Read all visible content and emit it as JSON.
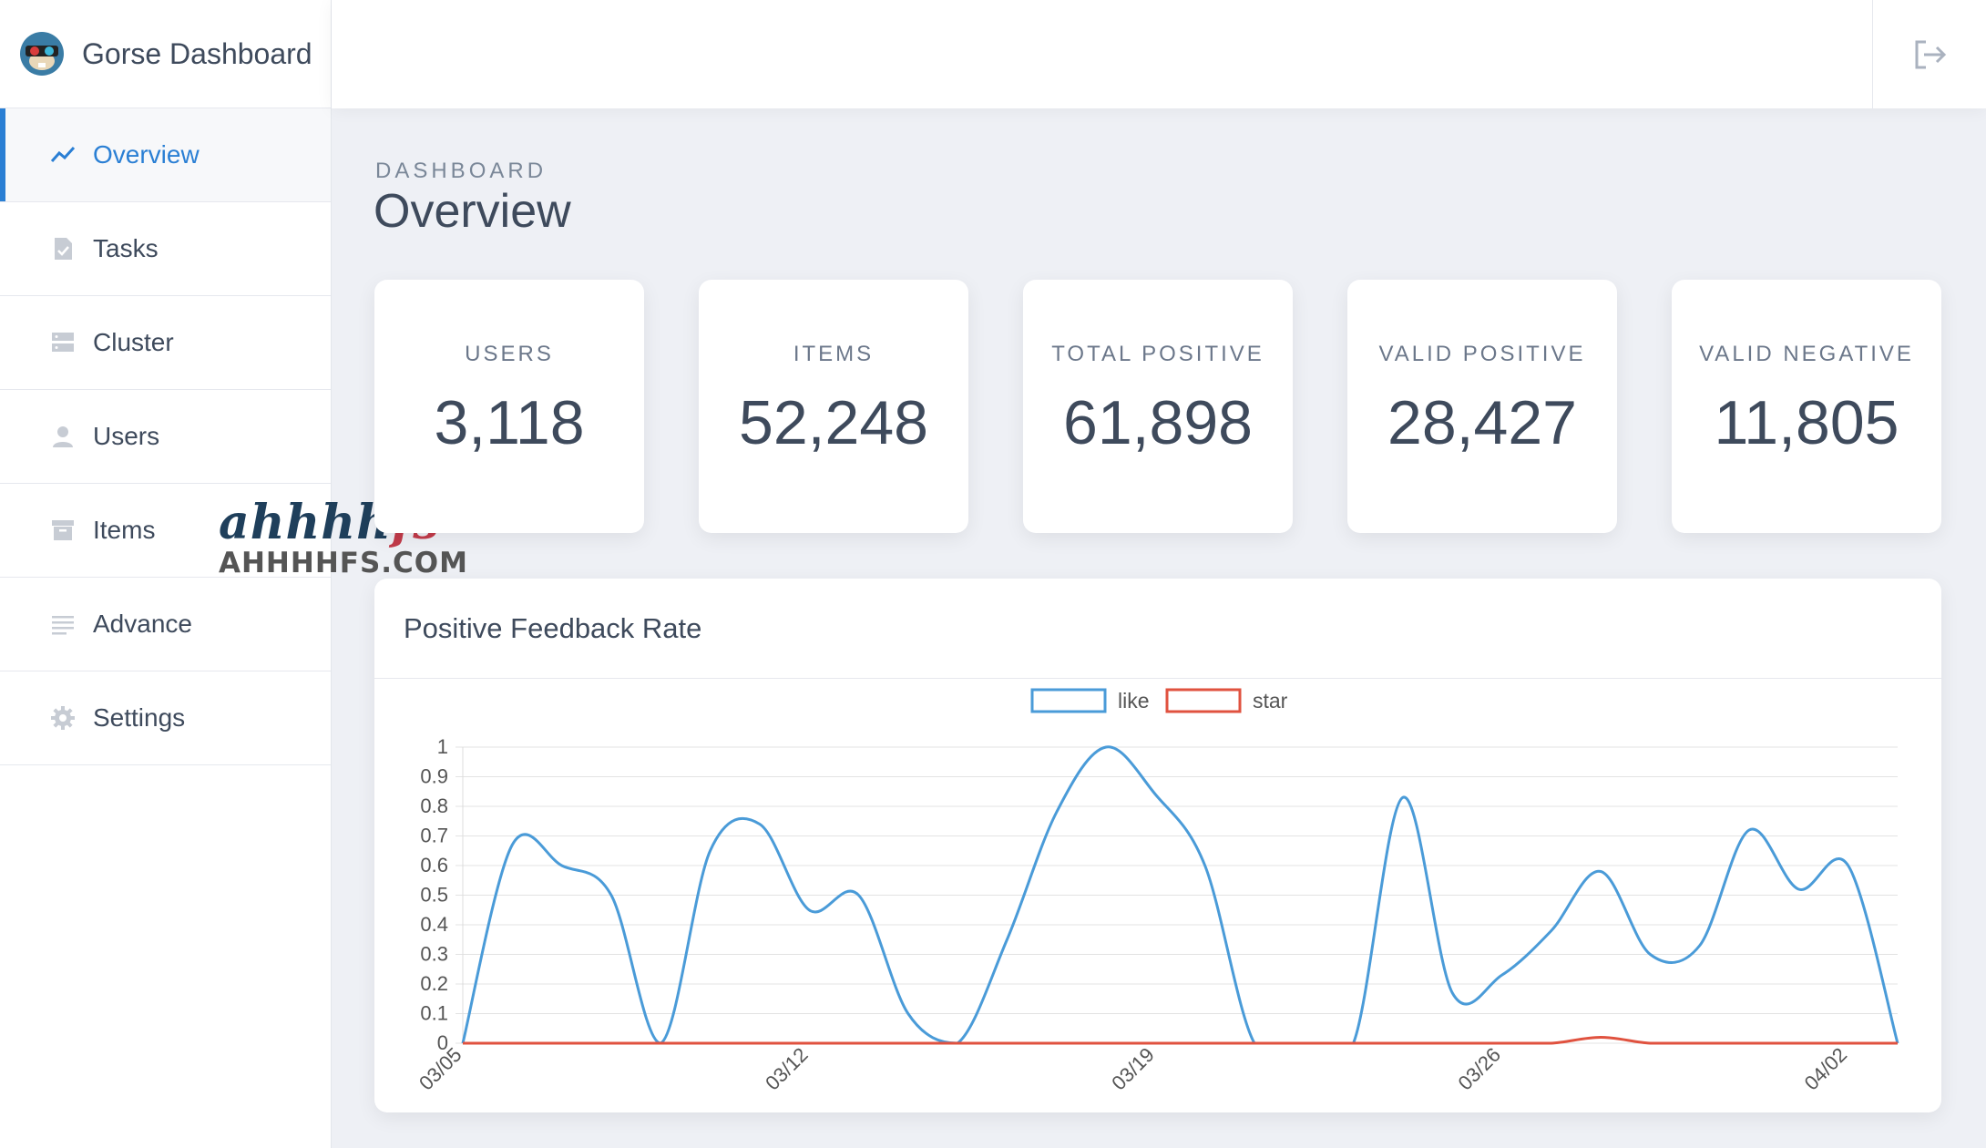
{
  "app": {
    "title": "Gorse Dashboard"
  },
  "sidebar": {
    "items": [
      {
        "label": "Overview",
        "icon": "trend-line-icon",
        "active": true
      },
      {
        "label": "Tasks",
        "icon": "file-check-icon",
        "active": false
      },
      {
        "label": "Cluster",
        "icon": "server-icon",
        "active": false
      },
      {
        "label": "Users",
        "icon": "user-icon",
        "active": false
      },
      {
        "label": "Items",
        "icon": "archive-icon",
        "active": false
      },
      {
        "label": "Advance",
        "icon": "list-icon",
        "active": false
      },
      {
        "label": "Settings",
        "icon": "gear-icon",
        "active": false
      }
    ]
  },
  "topbar": {
    "logout_icon": "logout-icon"
  },
  "header": {
    "subtitle": "DASHBOARD",
    "title": "Overview"
  },
  "stats": [
    {
      "label": "USERS",
      "value": "3,118"
    },
    {
      "label": "ITEMS",
      "value": "52,248"
    },
    {
      "label": "TOTAL POSITIVE",
      "value": "61,898"
    },
    {
      "label": "VALID POSITIVE",
      "value": "28,427"
    },
    {
      "label": "VALID NEGATIVE",
      "value": "11,805"
    }
  ],
  "watermark": {
    "script_a": "ahhhh",
    "script_b": "fs",
    "url": "AHHHHFS.COM"
  },
  "colors": {
    "accent": "#2a7fd4",
    "like": "#4a9bd8",
    "star": "#e0523f"
  },
  "chart_data": {
    "type": "line",
    "title": "Positive Feedback Rate",
    "x": [
      "03/05",
      "03/06",
      "03/07",
      "03/08",
      "03/09",
      "03/10",
      "03/11",
      "03/12",
      "03/13",
      "03/14",
      "03/15",
      "03/16",
      "03/17",
      "03/18",
      "03/19",
      "03/20",
      "03/21",
      "03/22",
      "03/23",
      "03/24",
      "03/25",
      "03/26",
      "03/27",
      "03/28",
      "03/29",
      "03/30",
      "03/31",
      "04/01",
      "04/02",
      "04/03"
    ],
    "x_tick_labels": [
      "03/05",
      "03/12",
      "03/19",
      "03/26",
      "04/02"
    ],
    "y_ticks": [
      "0",
      "0.1",
      "0.2",
      "0.3",
      "0.4",
      "0.5",
      "0.6",
      "0.7",
      "0.8",
      "0.9",
      "1"
    ],
    "ylim": [
      0,
      1
    ],
    "grid": true,
    "legend_position": "top-center",
    "series": [
      {
        "name": "like",
        "color": "#4a9bd8",
        "values": [
          0,
          0.67,
          0.6,
          0.5,
          0,
          0.65,
          0.74,
          0.45,
          0.5,
          0.1,
          0,
          0.35,
          0.78,
          1.0,
          0.84,
          0.6,
          0,
          0,
          0,
          0.83,
          0.17,
          0.23,
          0.38,
          0.58,
          0.3,
          0.33,
          0.72,
          0.52,
          0.6,
          0
        ]
      },
      {
        "name": "star",
        "color": "#e0523f",
        "values": [
          0,
          0,
          0,
          0,
          0,
          0,
          0,
          0,
          0,
          0,
          0,
          0,
          0,
          0,
          0,
          0,
          0,
          0,
          0,
          0,
          0,
          0,
          0,
          0.02,
          0,
          0,
          0,
          0,
          0,
          0
        ]
      }
    ]
  }
}
